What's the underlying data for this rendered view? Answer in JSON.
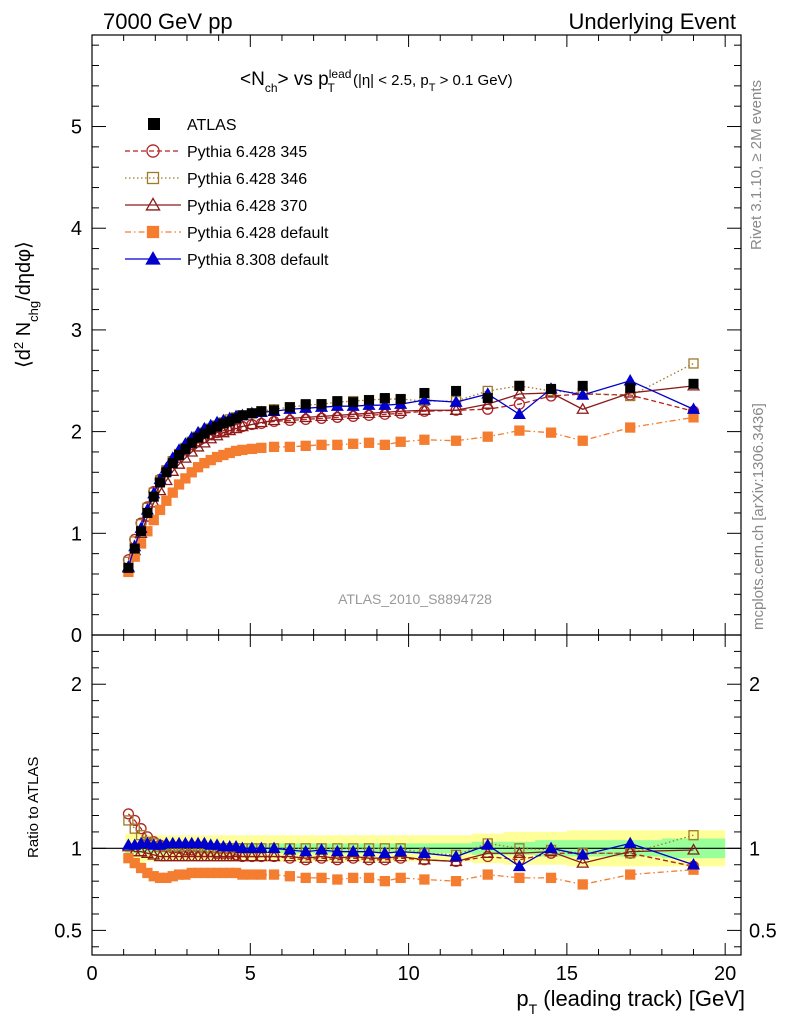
{
  "header": {
    "left": "7000 GeV pp",
    "right": "Underlying Event"
  },
  "side": {
    "rivet": "Rivet 3.1.10, ≥ 2M events",
    "mcplots": "mcplots.cern.ch [arXiv:1306.3436]"
  },
  "watermark": "ATLAS_2010_S8894728",
  "title": {
    "main": "<N",
    "main_sub": "ch",
    "main_rest": "> vs p",
    "sup": "lead",
    "sub": "T",
    "cut_a": " (|η| < 2.5, p",
    "cut_sub": "T",
    "cut_b": " > 0.1 GeV)"
  },
  "xaxis": {
    "label": "p",
    "label_sub": "T",
    "label_rest": " (leading track) [GeV]"
  },
  "ylabel_top": {
    "a": "⟨d",
    "sup": "2",
    "b": " N",
    "sub": "chg",
    "c": "/dηdφ⟩"
  },
  "ylabel_bottom": "Ratio to ATLAS",
  "chart_data": [
    {
      "type": "line",
      "panel": "main",
      "xlim": [
        0,
        20.5
      ],
      "ylim": [
        0,
        5.9
      ],
      "xticks": [
        "0",
        "5",
        "10",
        "15",
        "20"
      ],
      "yticks": [
        "0",
        "1",
        "2",
        "3",
        "4",
        "5"
      ],
      "x": [
        1.15,
        1.35,
        1.55,
        1.75,
        1.95,
        2.15,
        2.35,
        2.55,
        2.75,
        2.95,
        3.15,
        3.35,
        3.55,
        3.75,
        3.95,
        4.15,
        4.35,
        4.55,
        4.75,
        5.05,
        5.35,
        5.75,
        6.25,
        6.75,
        7.25,
        7.75,
        8.25,
        8.75,
        9.25,
        9.75,
        10.5,
        11.5,
        12.5,
        13.5,
        14.5,
        15.5,
        17.0,
        19.0
      ],
      "series": [
        {
          "name": "ATLAS",
          "style": "data",
          "color": "#000000",
          "values": [
            0.66,
            0.85,
            1.02,
            1.2,
            1.36,
            1.5,
            1.6,
            1.69,
            1.77,
            1.83,
            1.89,
            1.94,
            1.98,
            2.02,
            2.05,
            2.08,
            2.1,
            2.13,
            2.16,
            2.18,
            2.2,
            2.21,
            2.24,
            2.27,
            2.27,
            2.3,
            2.29,
            2.31,
            2.33,
            2.32,
            2.38,
            2.4,
            2.33,
            2.45,
            2.42,
            2.45,
            2.43,
            2.47
          ]
        },
        {
          "name": "Pythia 6.428 345",
          "style": "circle-open-dashed",
          "color": "#b22222",
          "values": [
            0.74,
            0.94,
            1.1,
            1.26,
            1.41,
            1.53,
            1.62,
            1.7,
            1.77,
            1.82,
            1.87,
            1.91,
            1.94,
            1.97,
            1.99,
            2.01,
            2.03,
            2.04,
            2.05,
            2.07,
            2.08,
            2.1,
            2.11,
            2.12,
            2.13,
            2.14,
            2.15,
            2.16,
            2.17,
            2.18,
            2.2,
            2.21,
            2.22,
            2.27,
            2.35,
            2.37,
            2.36,
            2.2
          ]
        },
        {
          "name": "Pythia 6.428 346",
          "style": "square-open-dotted",
          "color": "#a0782a",
          "values": [
            0.72,
            0.92,
            1.09,
            1.25,
            1.4,
            1.52,
            1.62,
            1.71,
            1.78,
            1.84,
            1.9,
            1.95,
            1.99,
            2.03,
            2.06,
            2.09,
            2.12,
            2.14,
            2.16,
            2.18,
            2.2,
            2.22,
            2.24,
            2.26,
            2.27,
            2.29,
            2.3,
            2.31,
            2.32,
            2.32,
            2.3,
            2.3,
            2.4,
            2.45,
            2.4,
            2.38,
            2.35,
            2.67
          ]
        },
        {
          "name": "Pythia 6.428 370",
          "style": "triangle-open-solid",
          "color": "#8b1a1a",
          "values": [
            0.66,
            0.83,
            1.0,
            1.16,
            1.3,
            1.42,
            1.52,
            1.61,
            1.68,
            1.74,
            1.8,
            1.85,
            1.89,
            1.93,
            1.96,
            1.99,
            2.01,
            2.03,
            2.05,
            2.07,
            2.09,
            2.11,
            2.13,
            2.14,
            2.15,
            2.16,
            2.17,
            2.18,
            2.19,
            2.2,
            2.21,
            2.21,
            2.27,
            2.37,
            2.38,
            2.22,
            2.38,
            2.45
          ]
        },
        {
          "name": "Pythia 6.428 default",
          "style": "square-filled-dashdot",
          "color": "#f47d30",
          "values": [
            0.62,
            0.77,
            0.9,
            1.02,
            1.13,
            1.23,
            1.32,
            1.4,
            1.48,
            1.54,
            1.6,
            1.65,
            1.69,
            1.72,
            1.75,
            1.77,
            1.79,
            1.81,
            1.82,
            1.83,
            1.84,
            1.85,
            1.85,
            1.86,
            1.87,
            1.87,
            1.88,
            1.89,
            1.87,
            1.9,
            1.92,
            1.91,
            1.95,
            2.01,
            1.99,
            1.91,
            2.04,
            2.14
          ]
        },
        {
          "name": "Pythia 8.308 default",
          "style": "triangle-filled-solid",
          "color": "#0000cc",
          "values": [
            0.67,
            0.87,
            1.05,
            1.23,
            1.39,
            1.53,
            1.64,
            1.74,
            1.82,
            1.88,
            1.94,
            1.99,
            2.03,
            2.06,
            2.09,
            2.11,
            2.13,
            2.15,
            2.16,
            2.18,
            2.19,
            2.2,
            2.22,
            2.23,
            2.24,
            2.25,
            2.25,
            2.26,
            2.26,
            2.27,
            2.31,
            2.29,
            2.37,
            2.17,
            2.42,
            2.36,
            2.5,
            2.22
          ]
        }
      ]
    },
    {
      "type": "line",
      "panel": "ratio",
      "xlim": [
        0,
        20.5
      ],
      "ylim": [
        0.35,
        2.3
      ],
      "yticks": [
        "0.5",
        "1",
        "2"
      ],
      "band_outer_color": "#ffff99",
      "band_inner_color": "#99ff99",
      "band_outer": [
        0.09,
        0.09,
        0.09,
        0.08,
        0.08,
        0.08,
        0.08,
        0.08,
        0.08,
        0.08,
        0.08,
        0.08,
        0.08,
        0.08,
        0.08,
        0.08,
        0.08,
        0.08,
        0.08,
        0.08,
        0.08,
        0.08,
        0.08,
        0.08,
        0.08,
        0.08,
        0.08,
        0.08,
        0.08,
        0.08,
        0.08,
        0.08,
        0.09,
        0.1,
        0.1,
        0.11,
        0.11,
        0.11
      ],
      "band_inner": [
        0.03,
        0.03,
        0.03,
        0.03,
        0.03,
        0.03,
        0.03,
        0.03,
        0.03,
        0.03,
        0.03,
        0.03,
        0.03,
        0.03,
        0.03,
        0.03,
        0.03,
        0.03,
        0.03,
        0.03,
        0.03,
        0.03,
        0.03,
        0.03,
        0.03,
        0.03,
        0.03,
        0.03,
        0.03,
        0.03,
        0.03,
        0.03,
        0.04,
        0.04,
        0.05,
        0.05,
        0.05,
        0.06
      ],
      "series": [
        {
          "name": "Pythia 6.428 345",
          "values": [
            1.21,
            1.17,
            1.12,
            1.07,
            1.04,
            1.02,
            1.01,
            1.0,
            1.0,
            0.99,
            0.99,
            0.98,
            0.98,
            0.98,
            0.97,
            0.97,
            0.97,
            0.96,
            0.95,
            0.95,
            0.95,
            0.95,
            0.94,
            0.93,
            0.94,
            0.93,
            0.94,
            0.93,
            0.93,
            0.94,
            0.93,
            0.92,
            0.95,
            0.93,
            0.97,
            0.97,
            0.97,
            0.89
          ]
        },
        {
          "name": "Pythia 6.428 346",
          "values": [
            1.17,
            1.12,
            1.08,
            1.04,
            1.03,
            1.01,
            1.01,
            1.01,
            1.01,
            1.01,
            1.01,
            1.01,
            1.0,
            1.0,
            1.0,
            1.0,
            1.0,
            1.0,
            1.0,
            1.0,
            1.0,
            1.0,
            1.0,
            1.0,
            1.0,
            1.0,
            1.0,
            1.0,
            1.0,
            1.0,
            0.97,
            0.96,
            1.03,
            1.0,
            0.99,
            0.97,
            0.97,
            1.08
          ]
        },
        {
          "name": "Pythia 6.428 370",
          "values": [
            1.01,
            0.98,
            0.98,
            0.97,
            0.96,
            0.95,
            0.95,
            0.95,
            0.95,
            0.95,
            0.95,
            0.95,
            0.95,
            0.95,
            0.95,
            0.95,
            0.95,
            0.95,
            0.95,
            0.95,
            0.95,
            0.95,
            0.95,
            0.94,
            0.95,
            0.94,
            0.95,
            0.94,
            0.94,
            0.95,
            0.93,
            0.92,
            0.97,
            0.97,
            0.98,
            0.91,
            0.98,
            0.99
          ]
        },
        {
          "name": "Pythia 6.428 default",
          "values": [
            0.94,
            0.91,
            0.88,
            0.85,
            0.83,
            0.82,
            0.82,
            0.83,
            0.84,
            0.84,
            0.85,
            0.85,
            0.85,
            0.85,
            0.85,
            0.85,
            0.85,
            0.85,
            0.84,
            0.84,
            0.84,
            0.84,
            0.83,
            0.82,
            0.82,
            0.81,
            0.82,
            0.82,
            0.8,
            0.82,
            0.81,
            0.8,
            0.84,
            0.82,
            0.82,
            0.78,
            0.84,
            0.87
          ]
        },
        {
          "name": "Pythia 8.308 default",
          "values": [
            1.02,
            1.02,
            1.03,
            1.03,
            1.02,
            1.02,
            1.03,
            1.03,
            1.03,
            1.03,
            1.03,
            1.03,
            1.03,
            1.02,
            1.02,
            1.01,
            1.01,
            1.01,
            1.0,
            1.0,
            1.0,
            1.0,
            0.99,
            0.98,
            0.99,
            0.98,
            0.98,
            0.98,
            0.97,
            0.98,
            0.97,
            0.95,
            1.02,
            0.89,
            1.0,
            0.96,
            1.03,
            0.9
          ]
        }
      ]
    }
  ]
}
